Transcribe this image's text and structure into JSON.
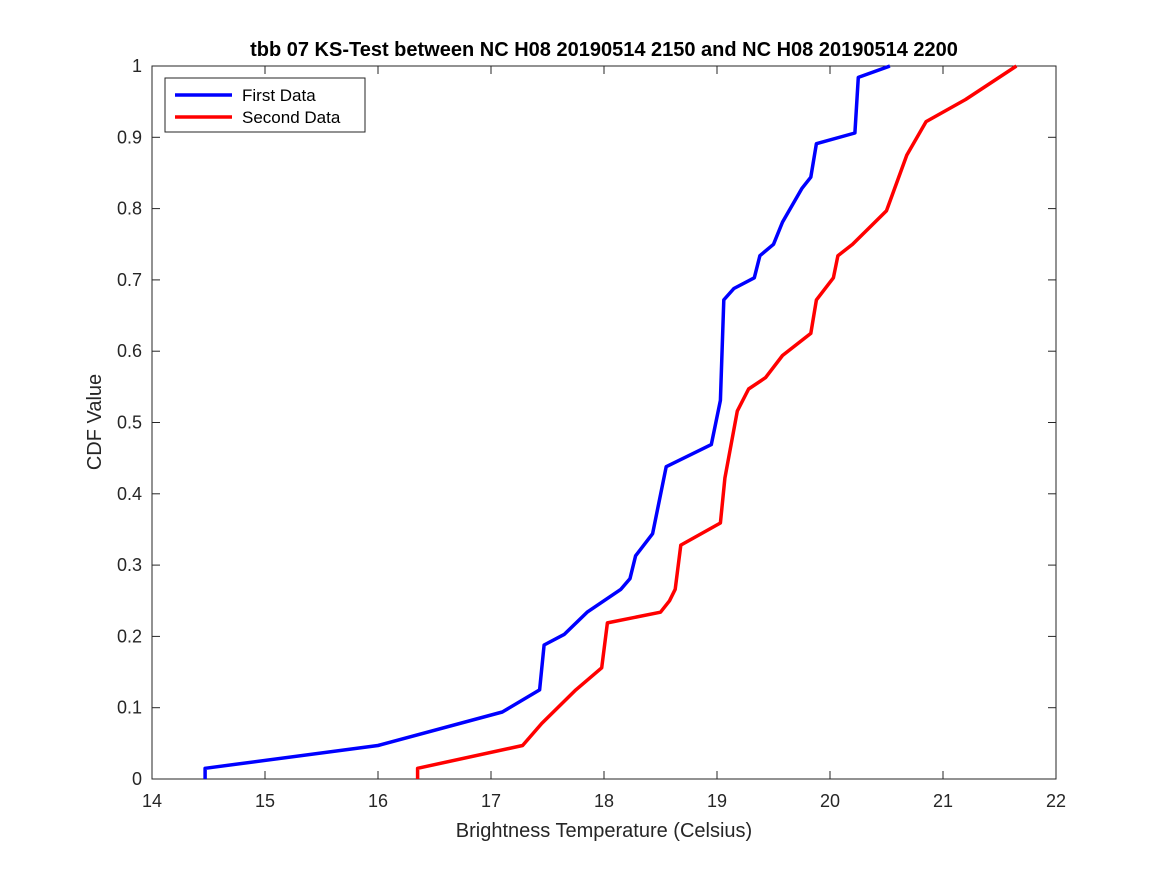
{
  "chart_data": {
    "type": "line",
    "title": "tbb 07 KS-Test between NC H08 20190514 2150 and NC H08 20190514 2200",
    "xlabel": "Brightness Temperature (Celsius)",
    "ylabel": "CDF Value",
    "xlim": [
      14,
      22
    ],
    "ylim": [
      0,
      1
    ],
    "xticks": [
      "14",
      "15",
      "16",
      "17",
      "18",
      "19",
      "20",
      "21",
      "22"
    ],
    "yticks": [
      "0",
      "0.1",
      "0.2",
      "0.3",
      "0.4",
      "0.5",
      "0.6",
      "0.7",
      "0.8",
      "0.9",
      "1"
    ],
    "legend_position": "top-left",
    "grid": false,
    "series": [
      {
        "name": "First Data",
        "color": "#0000ff",
        "x": [
          14.47,
          14.47,
          16.0,
          17.1,
          17.43,
          17.47,
          17.65,
          17.85,
          18.15,
          18.23,
          18.28,
          18.43,
          18.55,
          18.95,
          19.03,
          19.06,
          19.15,
          19.33,
          19.38,
          19.5,
          19.58,
          19.75,
          19.83,
          19.88,
          20.22,
          20.25,
          20.53
        ],
        "y": [
          0,
          0.015,
          0.047,
          0.094,
          0.125,
          0.188,
          0.203,
          0.234,
          0.266,
          0.281,
          0.313,
          0.344,
          0.438,
          0.469,
          0.531,
          0.672,
          0.688,
          0.703,
          0.734,
          0.75,
          0.781,
          0.828,
          0.844,
          0.891,
          0.906,
          0.984,
          1.0
        ]
      },
      {
        "name": "Second Data",
        "color": "#ff0000",
        "x": [
          16.35,
          16.35,
          17.28,
          17.45,
          17.75,
          17.98,
          18.03,
          18.5,
          18.58,
          18.63,
          18.68,
          19.03,
          19.07,
          19.18,
          19.28,
          19.43,
          19.58,
          19.83,
          19.88,
          20.03,
          20.07,
          20.2,
          20.5,
          20.68,
          20.85,
          21.2,
          21.65
        ],
        "y": [
          0,
          0.015,
          0.047,
          0.078,
          0.125,
          0.156,
          0.219,
          0.234,
          0.25,
          0.266,
          0.328,
          0.359,
          0.422,
          0.516,
          0.547,
          0.563,
          0.594,
          0.625,
          0.672,
          0.703,
          0.734,
          0.75,
          0.797,
          0.875,
          0.922,
          0.953,
          1.0
        ]
      }
    ]
  }
}
